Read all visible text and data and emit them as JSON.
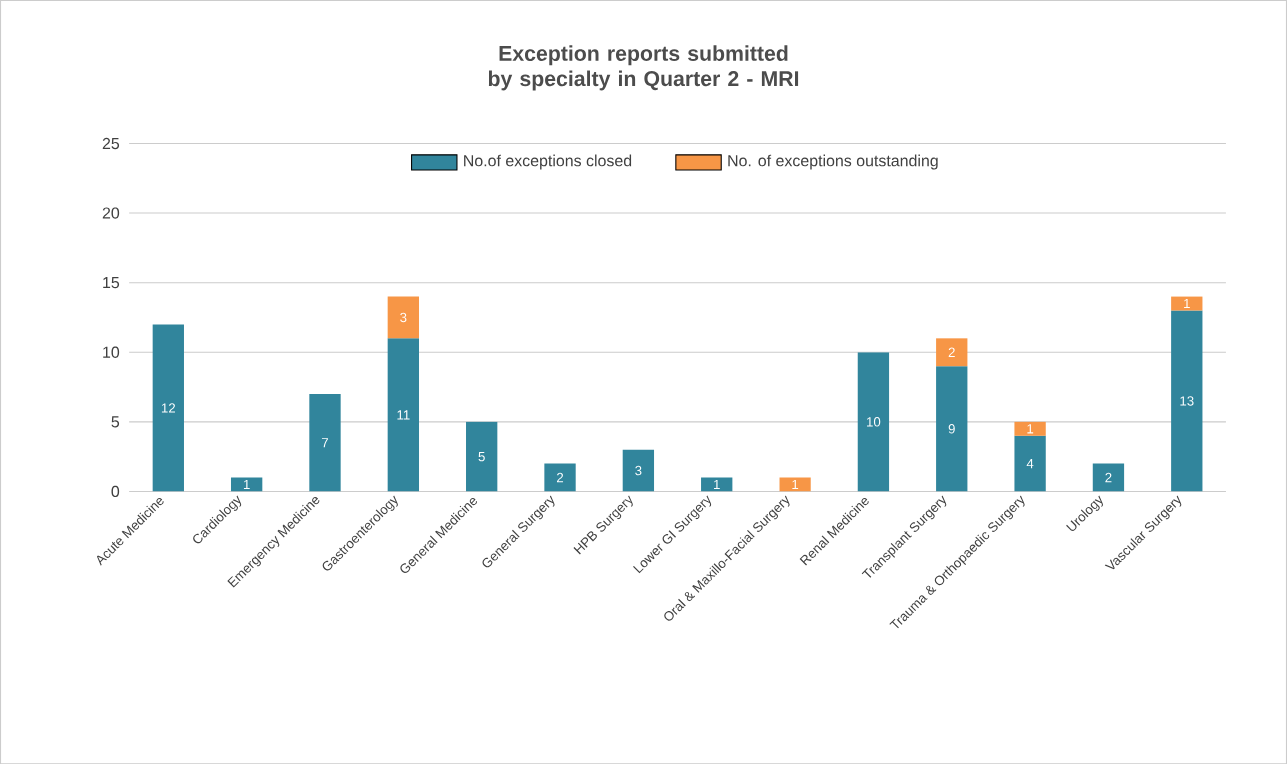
{
  "chart_data": {
    "type": "bar",
    "stacked": true,
    "title": "Exception reports submitted by specialty in Quarter 2 - MRI",
    "categories": [
      "Acute Medicine",
      "Cardiology",
      "Emergency Medicine",
      "Gastroenterology",
      "General Medicine",
      "General Surgery",
      "HPB Surgery",
      "Lower GI Surgery",
      "Oral & Maxillo-Facial Surgery",
      "Renal Medicine",
      "Transplant Surgery",
      "Trauma & Orthopaedic Surgery",
      "Urology",
      "Vascular Surgery"
    ],
    "series": [
      {
        "name": "No.of exceptions closed",
        "color": "#31859c",
        "values": [
          12,
          1,
          7,
          11,
          5,
          2,
          3,
          1,
          null,
          10,
          9,
          4,
          2,
          13
        ]
      },
      {
        "name": "No. of exceptions outstanding",
        "color": "#f79646",
        "values": [
          null,
          null,
          null,
          3,
          null,
          null,
          null,
          null,
          1,
          null,
          2,
          1,
          null,
          1
        ]
      }
    ],
    "ylim": [
      0,
      25
    ],
    "yticks": [
      0,
      5,
      10,
      15,
      20,
      25
    ],
    "grid": "y",
    "legend": "top",
    "data_labels": true
  }
}
